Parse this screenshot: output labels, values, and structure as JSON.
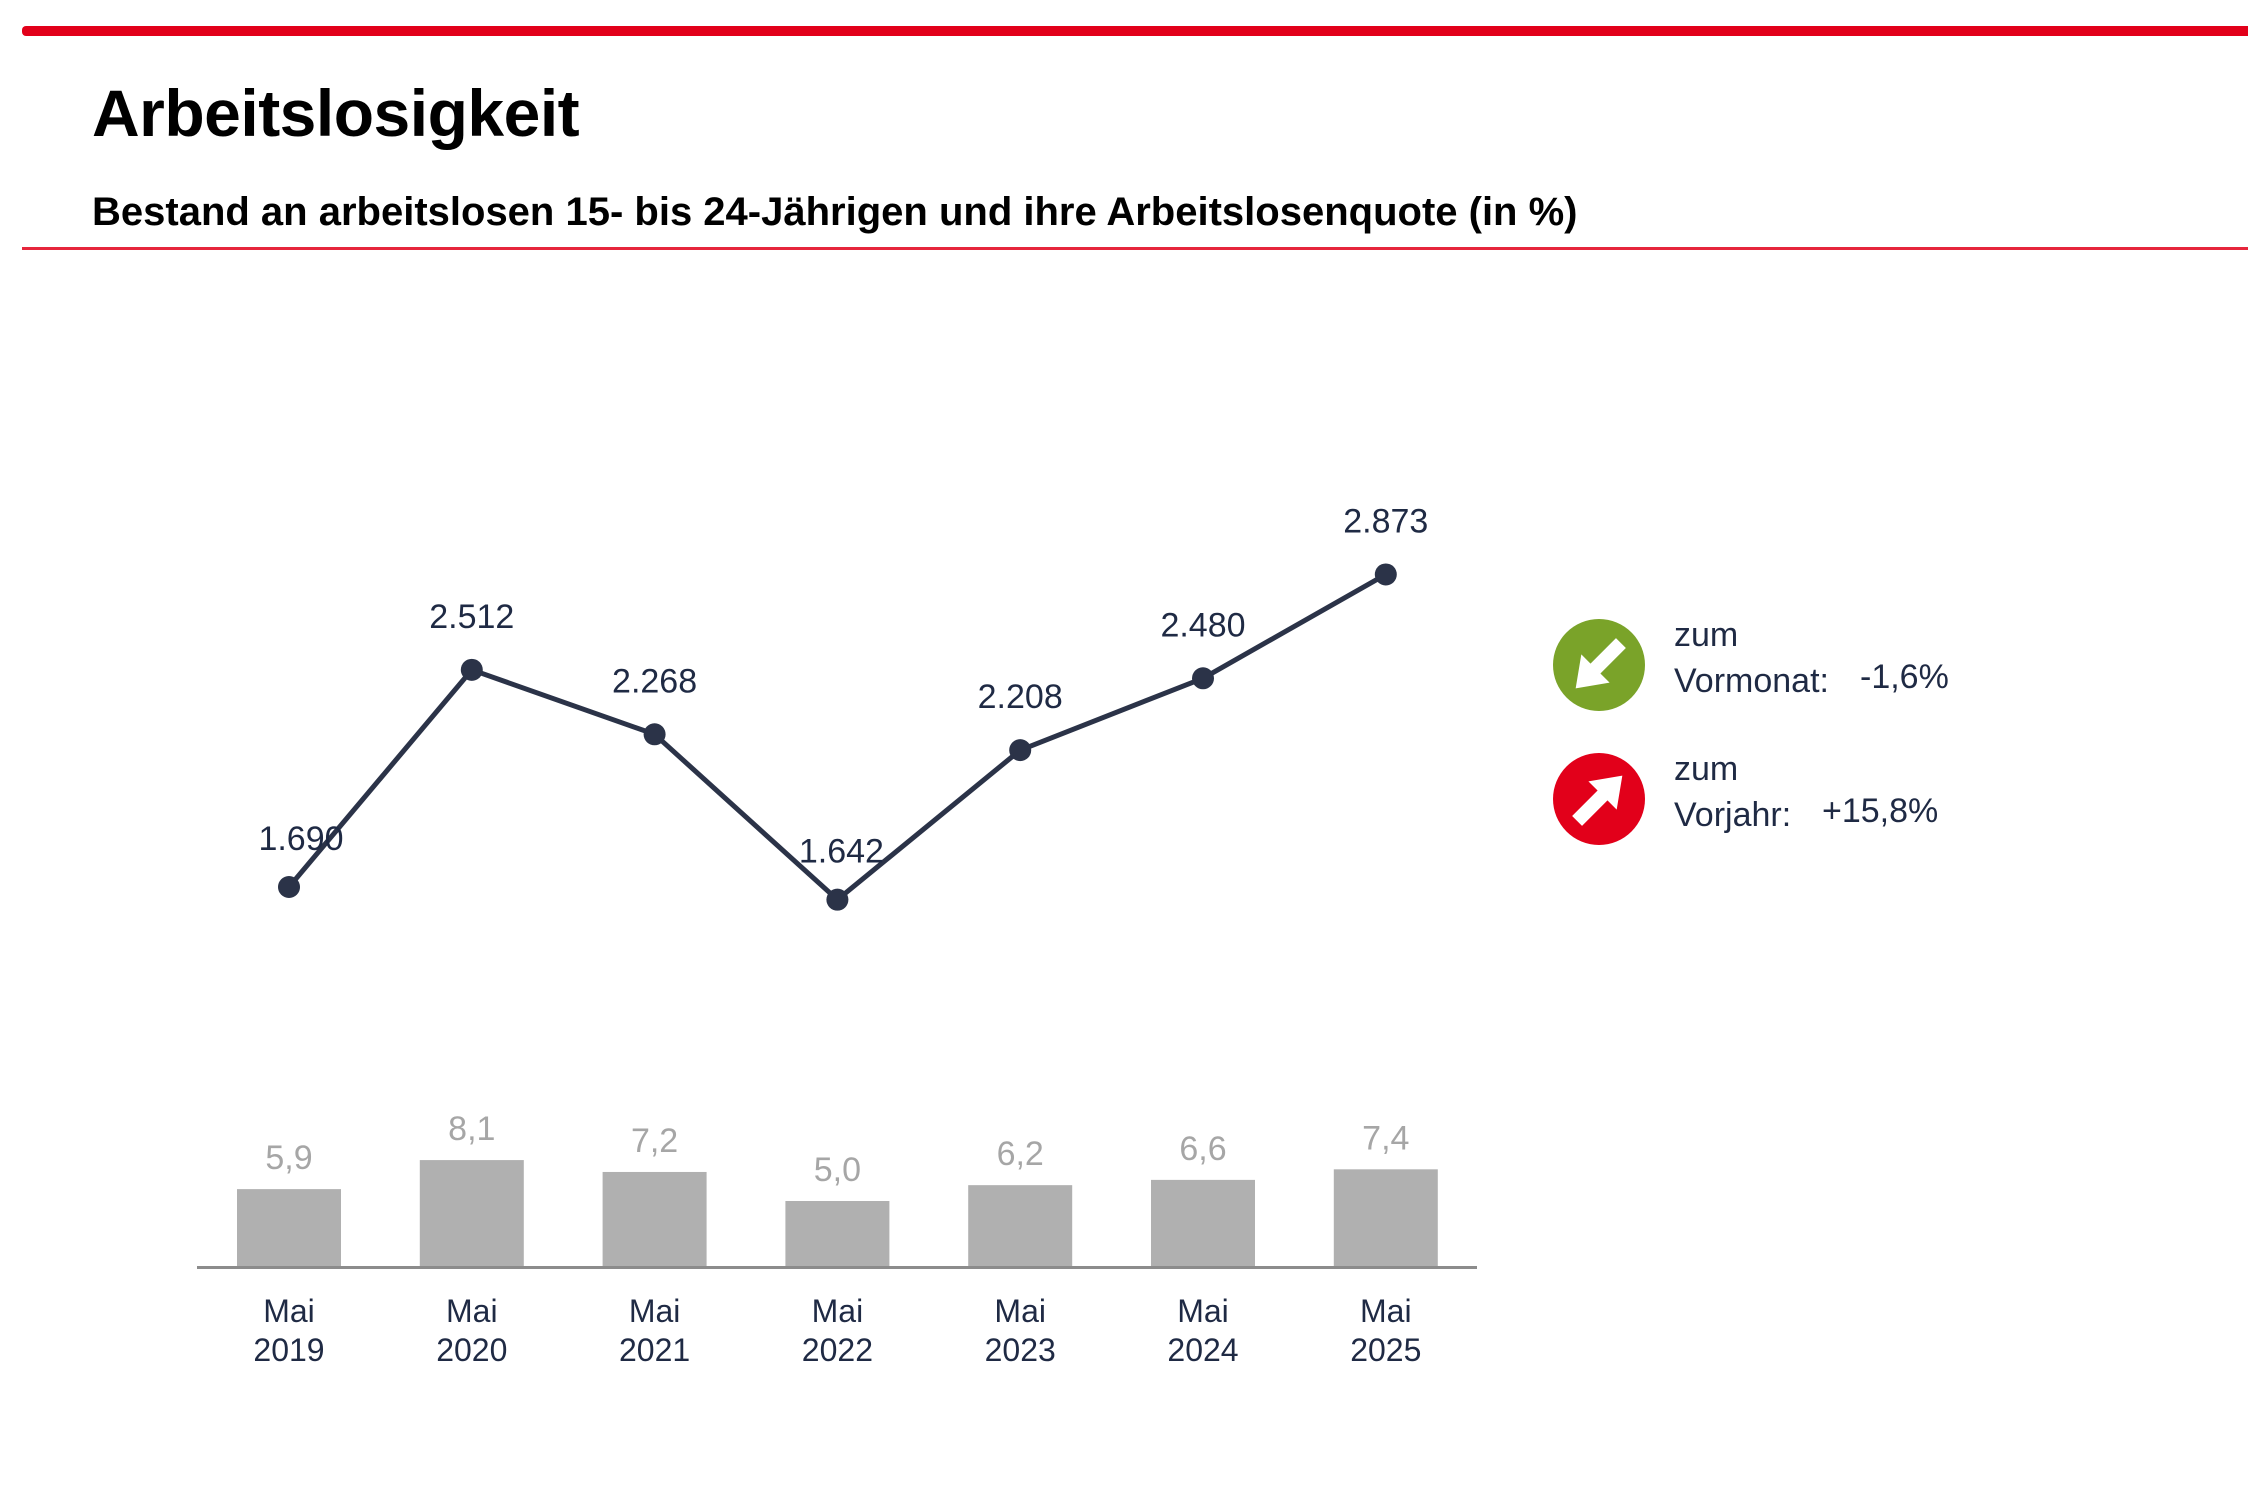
{
  "header": {
    "title": "Arbeitslosigkeit",
    "subtitle": "Bestand an arbeitslosen 15- bis 24-Jährigen und ihre Arbeitslosenquote (in %)"
  },
  "chart_data": {
    "type": "line",
    "categories": [
      [
        "Mai",
        "2019"
      ],
      [
        "Mai",
        "2020"
      ],
      [
        "Mai",
        "2021"
      ],
      [
        "Mai",
        "2022"
      ],
      [
        "Mai",
        "2023"
      ],
      [
        "Mai",
        "2024"
      ],
      [
        "Mai",
        "2025"
      ]
    ],
    "series": [
      {
        "type": "line",
        "values": [
          1690,
          2512,
          2268,
          1642,
          2208,
          2480,
          2873
        ],
        "labels": [
          "1.690",
          "2.512",
          "2.268",
          "1.642",
          "2.208",
          "2.480",
          "2.873"
        ],
        "color": "#2b3348"
      },
      {
        "type": "bar",
        "values": [
          5.9,
          8.1,
          7.2,
          5.0,
          6.2,
          6.6,
          7.4
        ],
        "labels": [
          "5,9",
          "8,1",
          "7,2",
          "5,0",
          "6,2",
          "6,6",
          "7,4"
        ],
        "color": "#b0b0b0"
      }
    ],
    "grid": false,
    "legend": "none"
  },
  "changes": [
    {
      "line1": "zum",
      "line2": "Vormonat:",
      "value": "-1,6%",
      "direction": "down-right",
      "color": "#7aa329",
      "icon": "arrow-down-right-icon"
    },
    {
      "line1": "zum",
      "line2": "Vorjahr:",
      "value": "+15,8%",
      "direction": "up-right",
      "color": "#e2001a",
      "icon": "arrow-up-right-icon"
    }
  ]
}
